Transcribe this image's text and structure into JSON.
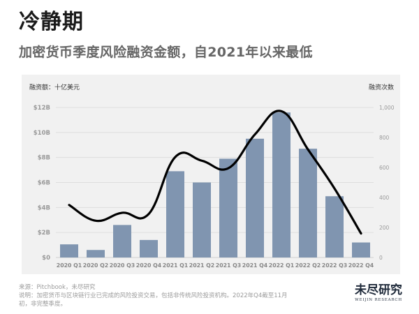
{
  "header": {
    "title": "冷静期",
    "subtitle": "加密货币季度风险融资金额，自2021年以来最低"
  },
  "chart_data": {
    "type": "bar+line",
    "title": "加密货币季度风险融资金额，自2021年以来最低",
    "categories": [
      "2020 Q1",
      "2020 Q2",
      "2020 Q3",
      "2020 Q4",
      "2021 Q1",
      "2021 Q2",
      "2021 Q3",
      "2021 Q4",
      "2022 Q1",
      "2022 Q2",
      "2022 Q3",
      "2022 Q4"
    ],
    "series": [
      {
        "name": "融资额",
        "type": "bar",
        "axis": "left",
        "color": "#8095b0",
        "values": [
          1.05,
          0.6,
          2.6,
          1.4,
          6.9,
          6.0,
          7.9,
          9.5,
          11.6,
          8.7,
          4.9,
          1.2
        ]
      },
      {
        "name": "融资次数",
        "type": "line",
        "axis": "right",
        "color": "#000000",
        "values": [
          350,
          245,
          298,
          290,
          670,
          645,
          595,
          820,
          975,
          720,
          460,
          160
        ]
      }
    ],
    "ylabel": "融资额：十亿美元",
    "ylabel_right": "融资次数",
    "ylim": [
      0,
      12
    ],
    "ylim_right": [
      0,
      1000
    ],
    "yticks": [
      "$0",
      "$2B",
      "$4B",
      "$6B",
      "$8B",
      "$10B",
      "$12B"
    ],
    "yticks_right": [
      "0",
      "200",
      "400",
      "600",
      "800",
      "1,000"
    ],
    "grid": true,
    "legend": "none"
  },
  "axes": {
    "left_title": "融资额：十亿美元",
    "right_title": "融资次数"
  },
  "footer": {
    "source": "来源：Pitchbook，未尽研究",
    "note_line1": "说明：加密货币与区块链行业已完成的风险投资交易，包括非传统风险投资机构。2022年Q4截至11月",
    "note_line2": "初，非完整季度。"
  },
  "logo": {
    "cn": "未尽研究",
    "en": "WEIJIN RESEARCH"
  }
}
